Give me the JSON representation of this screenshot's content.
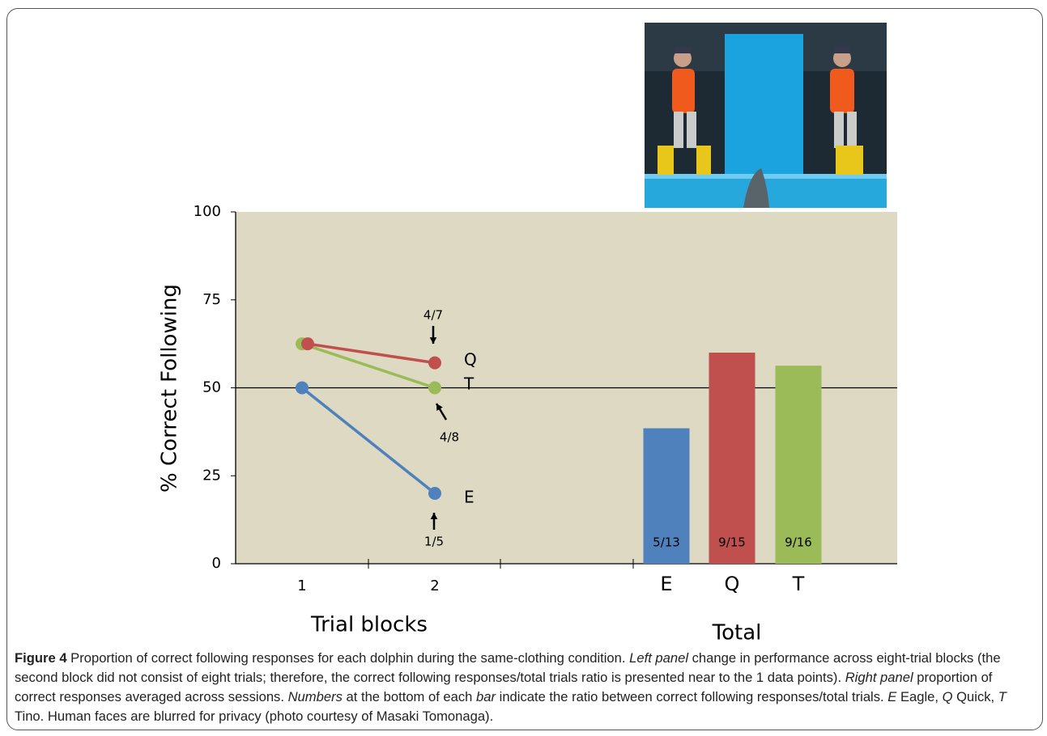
{
  "chart_data": [
    {
      "type": "line",
      "ylabel": "% Correct Following",
      "xlabel": "Trial blocks",
      "categories": [
        "1",
        "2"
      ],
      "ylim": [
        0,
        100
      ],
      "yticks": [
        0,
        25,
        50,
        75,
        100
      ],
      "reference_line": 50,
      "series": [
        {
          "name": "E",
          "color": "#4f81bd",
          "values": [
            50,
            20
          ],
          "point_label": "1/5"
        },
        {
          "name": "Q",
          "color": "#c0504d",
          "values": [
            62.5,
            57.1
          ],
          "point_label": "4/7"
        },
        {
          "name": "T",
          "color": "#9bbb59",
          "values": [
            62.5,
            50
          ],
          "point_label": "4/8"
        }
      ]
    },
    {
      "type": "bar",
      "xlabel": "Total",
      "categories": [
        "E",
        "Q",
        "T"
      ],
      "ylim": [
        0,
        100
      ],
      "values": [
        38.5,
        60,
        56.3
      ],
      "colors": [
        "#4f81bd",
        "#c0504d",
        "#9bbb59"
      ],
      "bar_labels": [
        "5/13",
        "9/15",
        "9/16"
      ]
    }
  ],
  "caption": {
    "label": "Figure 4",
    "parts": [
      " Proportion of correct following responses for each dolphin during the same-clothing condition. ",
      "Left panel",
      " change in performance across eight-trial blocks (the second block did not consist of eight trials; therefore, the correct following responses/total trials ratio is presented near to the 1 data points). ",
      "Right panel",
      " proportion of correct responses averaged across sessions. ",
      "Numbers",
      " at the bottom of each ",
      "bar",
      " indicate the ratio between correct following responses/total trials. ",
      "E",
      " Eagle, ",
      "Q",
      " Quick, ",
      "T",
      " Tino. Human faces are blurred for privacy (photo courtesy of Masaki Tomonaga)."
    ]
  }
}
